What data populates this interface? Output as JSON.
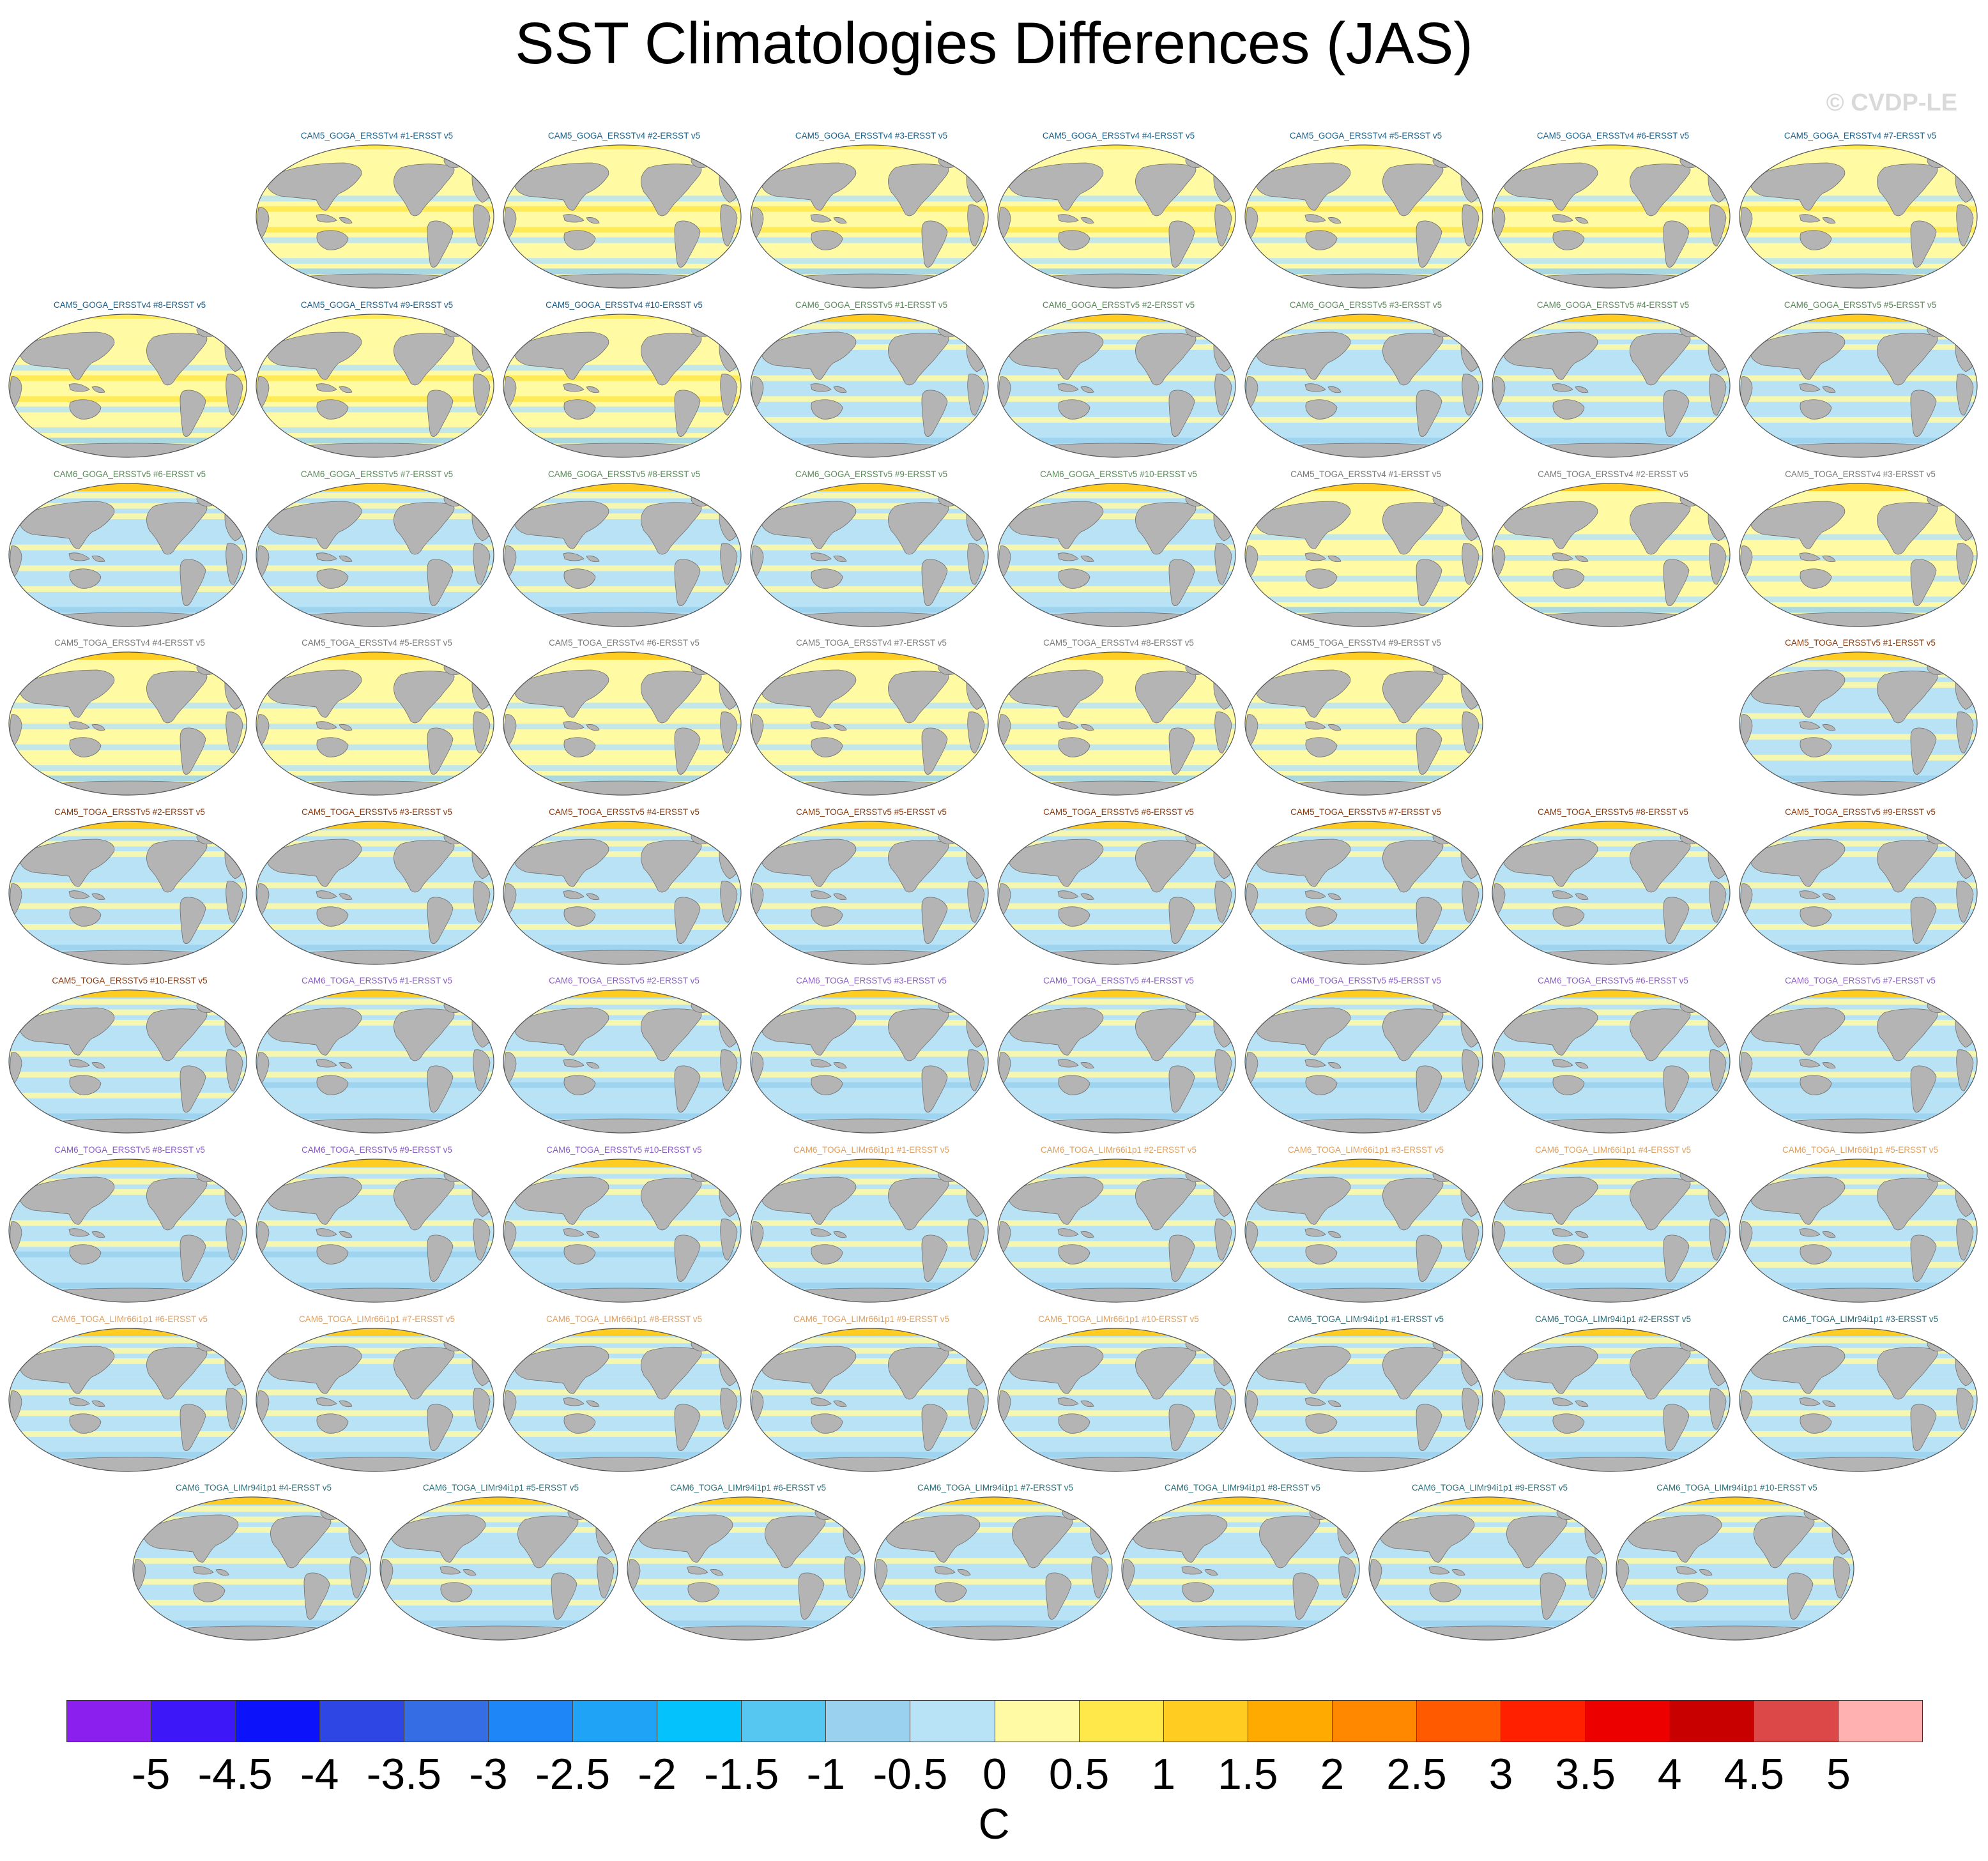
{
  "title": "SST Climatologies Differences (JAS)",
  "copyright": "© CVDP-LE",
  "colors": {
    "land": "#b4b4b4",
    "map_outline": "#555555",
    "background": "#ffffff"
  },
  "chart_data": {
    "type": "heatmap",
    "title": "SST Climatologies Differences (JAS)",
    "units_label": "C",
    "projection": "Robinson (global maps)",
    "colorbar": {
      "ticks": [
        "-5",
        "-4.5",
        "-4",
        "-3.5",
        "-3",
        "-2.5",
        "-2",
        "-1.5",
        "-1",
        "-0.5",
        "0",
        "0.5",
        "1",
        "1.5",
        "2",
        "2.5",
        "3",
        "3.5",
        "4",
        "4.5",
        "5"
      ],
      "colors": [
        "#8b1fee",
        "#3d17f8",
        "#0c12f9",
        "#2e46e4",
        "#356ee4",
        "#1e86f6",
        "#1ea3f6",
        "#04c2fc",
        "#55c7f0",
        "#9ad1ee",
        "#b8e2f5",
        "#fffaa3",
        "#ffe84a",
        "#ffcc22",
        "#ffaa00",
        "#ff8800",
        "#ff5a00",
        "#ff2000",
        "#ec0000",
        "#c80000",
        "#dc4848",
        "#ffb0b0"
      ]
    },
    "panels": [
      {
        "label": "CAM5_GOGA_ERSSTv4 #1-ERSST v5",
        "label_color": "#1a5f8a",
        "bias": 0.25
      },
      {
        "label": "CAM5_GOGA_ERSSTv4 #2-ERSST v5",
        "label_color": "#1a5f8a",
        "bias": 0.25
      },
      {
        "label": "CAM5_GOGA_ERSSTv4 #3-ERSST v5",
        "label_color": "#1a5f8a",
        "bias": 0.25
      },
      {
        "label": "CAM5_GOGA_ERSSTv4 #4-ERSST v5",
        "label_color": "#1a5f8a",
        "bias": 0.25
      },
      {
        "label": "CAM5_GOGA_ERSSTv4 #5-ERSST v5",
        "label_color": "#1a5f8a",
        "bias": 0.25
      },
      {
        "label": "CAM5_GOGA_ERSSTv4 #6-ERSST v5",
        "label_color": "#1a5f8a",
        "bias": 0.25
      },
      {
        "label": "CAM5_GOGA_ERSSTv4 #7-ERSST v5",
        "label_color": "#1a5f8a",
        "bias": 0.25
      },
      {
        "label": "CAM5_GOGA_ERSSTv4 #8-ERSST v5",
        "label_color": "#1a5f8a",
        "bias": 0.25
      },
      {
        "label": "CAM5_GOGA_ERSSTv4 #9-ERSST v5",
        "label_color": "#1a5f8a",
        "bias": 0.25
      },
      {
        "label": "CAM5_GOGA_ERSSTv4 #10-ERSST v5",
        "label_color": "#1a5f8a",
        "bias": 0.25
      },
      {
        "label": "CAM6_GOGA_ERSSTv5 #1-ERSST v5",
        "label_color": "#5a8a5a",
        "bias": -0.05
      },
      {
        "label": "CAM6_GOGA_ERSSTv5 #2-ERSST v5",
        "label_color": "#5a8a5a",
        "bias": -0.05
      },
      {
        "label": "CAM6_GOGA_ERSSTv5 #3-ERSST v5",
        "label_color": "#5a8a5a",
        "bias": -0.05
      },
      {
        "label": "CAM6_GOGA_ERSSTv5 #4-ERSST v5",
        "label_color": "#5a8a5a",
        "bias": -0.05
      },
      {
        "label": "CAM6_GOGA_ERSSTv5 #5-ERSST v5",
        "label_color": "#5a8a5a",
        "bias": -0.05
      },
      {
        "label": "CAM6_GOGA_ERSSTv5 #6-ERSST v5",
        "label_color": "#5a8a5a",
        "bias": -0.05
      },
      {
        "label": "CAM6_GOGA_ERSSTv5 #7-ERSST v5",
        "label_color": "#5a8a5a",
        "bias": -0.05
      },
      {
        "label": "CAM6_GOGA_ERSSTv5 #8-ERSST v5",
        "label_color": "#5a8a5a",
        "bias": -0.05
      },
      {
        "label": "CAM6_GOGA_ERSSTv5 #9-ERSST v5",
        "label_color": "#5a8a5a",
        "bias": -0.05
      },
      {
        "label": "CAM6_GOGA_ERSSTv5 #10-ERSST v5",
        "label_color": "#5a8a5a",
        "bias": -0.05
      },
      {
        "label": "CAM5_TOGA_ERSSTv4 #1-ERSST v5",
        "label_color": "#7a7a7a",
        "bias": 0.1
      },
      {
        "label": "CAM5_TOGA_ERSSTv4 #2-ERSST v5",
        "label_color": "#7a7a7a",
        "bias": 0.1
      },
      {
        "label": "CAM5_TOGA_ERSSTv4 #3-ERSST v5",
        "label_color": "#7a7a7a",
        "bias": 0.1
      },
      {
        "label": "CAM5_TOGA_ERSSTv4 #4-ERSST v5",
        "label_color": "#7a7a7a",
        "bias": 0.1
      },
      {
        "label": "CAM5_TOGA_ERSSTv4 #5-ERSST v5",
        "label_color": "#7a7a7a",
        "bias": 0.1
      },
      {
        "label": "CAM5_TOGA_ERSSTv4 #6-ERSST v5",
        "label_color": "#7a7a7a",
        "bias": 0.1
      },
      {
        "label": "CAM5_TOGA_ERSSTv4 #7-ERSST v5",
        "label_color": "#7a7a7a",
        "bias": 0.1
      },
      {
        "label": "CAM5_TOGA_ERSSTv4 #8-ERSST v5",
        "label_color": "#7a7a7a",
        "bias": 0.1
      },
      {
        "label": "CAM5_TOGA_ERSSTv4 #9-ERSST v5",
        "label_color": "#7a7a7a",
        "bias": 0.1
      },
      {
        "label": "CAM5_TOGA_ERSSTv5 #1-ERSST v5",
        "label_color": "#8b3a0e",
        "bias": -0.15
      },
      {
        "label": "CAM5_TOGA_ERSSTv5 #2-ERSST v5",
        "label_color": "#8b3a0e",
        "bias": -0.15
      },
      {
        "label": "CAM5_TOGA_ERSSTv5 #3-ERSST v5",
        "label_color": "#8b3a0e",
        "bias": -0.15
      },
      {
        "label": "CAM5_TOGA_ERSSTv5 #4-ERSST v5",
        "label_color": "#8b3a0e",
        "bias": -0.15
      },
      {
        "label": "CAM5_TOGA_ERSSTv5 #5-ERSST v5",
        "label_color": "#8b3a0e",
        "bias": -0.15
      },
      {
        "label": "CAM5_TOGA_ERSSTv5 #6-ERSST v5",
        "label_color": "#8b3a0e",
        "bias": -0.15
      },
      {
        "label": "CAM5_TOGA_ERSSTv5 #7-ERSST v5",
        "label_color": "#8b3a0e",
        "bias": -0.15
      },
      {
        "label": "CAM5_TOGA_ERSSTv5 #8-ERSST v5",
        "label_color": "#8b3a0e",
        "bias": -0.15
      },
      {
        "label": "CAM5_TOGA_ERSSTv5 #9-ERSST v5",
        "label_color": "#8b3a0e",
        "bias": -0.15
      },
      {
        "label": "CAM5_TOGA_ERSSTv5 #10-ERSST v5",
        "label_color": "#8b3a0e",
        "bias": -0.15
      },
      {
        "label": "CAM6_TOGA_ERSSTv5 #1-ERSST v5",
        "label_color": "#8a5cc8",
        "bias": -0.2
      },
      {
        "label": "CAM6_TOGA_ERSSTv5 #2-ERSST v5",
        "label_color": "#8a5cc8",
        "bias": -0.2
      },
      {
        "label": "CAM6_TOGA_ERSSTv5 #3-ERSST v5",
        "label_color": "#8a5cc8",
        "bias": -0.2
      },
      {
        "label": "CAM6_TOGA_ERSSTv5 #4-ERSST v5",
        "label_color": "#8a5cc8",
        "bias": -0.2
      },
      {
        "label": "CAM6_TOGA_ERSSTv5 #5-ERSST v5",
        "label_color": "#8a5cc8",
        "bias": -0.2
      },
      {
        "label": "CAM6_TOGA_ERSSTv5 #6-ERSST v5",
        "label_color": "#8a5cc8",
        "bias": -0.2
      },
      {
        "label": "CAM6_TOGA_ERSSTv5 #7-ERSST v5",
        "label_color": "#8a5cc8",
        "bias": -0.2
      },
      {
        "label": "CAM6_TOGA_ERSSTv5 #8-ERSST v5",
        "label_color": "#8a5cc8",
        "bias": -0.2
      },
      {
        "label": "CAM6_TOGA_ERSSTv5 #9-ERSST v5",
        "label_color": "#8a5cc8",
        "bias": -0.2
      },
      {
        "label": "CAM6_TOGA_ERSSTv5 #10-ERSST v5",
        "label_color": "#8a5cc8",
        "bias": -0.2
      },
      {
        "label": "CAM6_TOGA_LIMr66i1p1 #1-ERSST v5",
        "label_color": "#e0a060",
        "bias": -0.1
      },
      {
        "label": "CAM6_TOGA_LIMr66i1p1 #2-ERSST v5",
        "label_color": "#e0a060",
        "bias": -0.1
      },
      {
        "label": "CAM6_TOGA_LIMr66i1p1 #3-ERSST v5",
        "label_color": "#e0a060",
        "bias": -0.1
      },
      {
        "label": "CAM6_TOGA_LIMr66i1p1 #4-ERSST v5",
        "label_color": "#e0a060",
        "bias": -0.1
      },
      {
        "label": "CAM6_TOGA_LIMr66i1p1 #5-ERSST v5",
        "label_color": "#e0a060",
        "bias": -0.1
      },
      {
        "label": "CAM6_TOGA_LIMr66i1p1 #6-ERSST v5",
        "label_color": "#e0a060",
        "bias": -0.1
      },
      {
        "label": "CAM6_TOGA_LIMr66i1p1 #7-ERSST v5",
        "label_color": "#e0a060",
        "bias": -0.1
      },
      {
        "label": "CAM6_TOGA_LIMr66i1p1 #8-ERSST v5",
        "label_color": "#e0a060",
        "bias": -0.1
      },
      {
        "label": "CAM6_TOGA_LIMr66i1p1 #9-ERSST v5",
        "label_color": "#e0a060",
        "bias": -0.1
      },
      {
        "label": "CAM6_TOGA_LIMr66i1p1 #10-ERSST v5",
        "label_color": "#e0a060",
        "bias": -0.1
      },
      {
        "label": "CAM6_TOGA_LIMr94i1p1 #1-ERSST v5",
        "label_color": "#2a6f7a",
        "bias": -0.05
      },
      {
        "label": "CAM6_TOGA_LIMr94i1p1 #2-ERSST v5",
        "label_color": "#2a6f7a",
        "bias": -0.05
      },
      {
        "label": "CAM6_TOGA_LIMr94i1p1 #3-ERSST v5",
        "label_color": "#2a6f7a",
        "bias": -0.05
      },
      {
        "label": "CAM6_TOGA_LIMr94i1p1 #4-ERSST v5",
        "label_color": "#2a6f7a",
        "bias": -0.05
      },
      {
        "label": "CAM6_TOGA_LIMr94i1p1 #5-ERSST v5",
        "label_color": "#2a6f7a",
        "bias": -0.05
      },
      {
        "label": "CAM6_TOGA_LIMr94i1p1 #6-ERSST v5",
        "label_color": "#2a6f7a",
        "bias": -0.05
      },
      {
        "label": "CAM6_TOGA_LIMr94i1p1 #7-ERSST v5",
        "label_color": "#2a6f7a",
        "bias": -0.05
      },
      {
        "label": "CAM6_TOGA_LIMr94i1p1 #8-ERSST v5",
        "label_color": "#2a6f7a",
        "bias": -0.05
      },
      {
        "label": "CAM6_TOGA_LIMr94i1p1 #9-ERSST v5",
        "label_color": "#2a6f7a",
        "bias": -0.05
      },
      {
        "label": "CAM6_TOGA_LIMr94i1p1 #10-ERSST v5",
        "label_color": "#2a6f7a",
        "bias": -0.05
      }
    ]
  }
}
